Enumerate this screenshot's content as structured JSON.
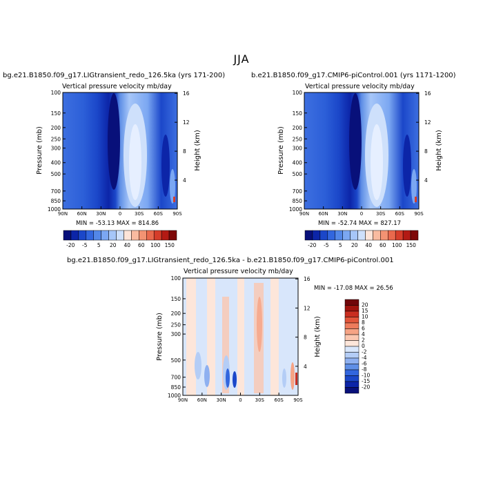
{
  "season": "JJA",
  "panels": [
    {
      "title": "bg.e21.B1850.f09_g17.LIGtransient_redo_126.5ka (yrs 171-200)",
      "subtitle": "Vertical pressure velocity   mb/day",
      "ylabel": "Pressure (mb)",
      "ylabel_right": "Height (km)",
      "stats": "MIN = -53.13   MAX = 814.86"
    },
    {
      "title": "b.e21.B1850.f09_g17.CMIP6-piControl.001 (yrs 1171-1200)",
      "subtitle": "Vertical pressure velocity   mb/day",
      "ylabel": "Pressure (mb)",
      "ylabel_right": "Height (km)",
      "stats": "MIN = -52.74   MAX = 827.17"
    },
    {
      "title": "bg.e21.B1850.f09_g17.LIGtransient_redo_126.5ka - b.e21.B1850.f09_g17.CMIP6-piControl.001",
      "subtitle": "Vertical pressure velocity   mb/day",
      "ylabel": "Pressure (mb)",
      "ylabel_right": "Height (km)",
      "stats": "MIN = -17.08   MAX =  26.56"
    }
  ],
  "colors": {
    "abs_levels": [
      "#08107a",
      "#0c25a8",
      "#1b47c9",
      "#3266de",
      "#5387e8",
      "#7ba7f2",
      "#a6c6f8",
      "#cee0fb",
      "#fde4d8",
      "#f9bba0",
      "#f39373",
      "#e9694d",
      "#d63d2a",
      "#b31a14",
      "#7e0808"
    ],
    "diff_levels": [
      "#08107a",
      "#0c25a8",
      "#1b47c9",
      "#3266de",
      "#5f8fe6",
      "#8eb0f0",
      "#b4cdf6",
      "#d8e6fb",
      "#fde6da",
      "#fbc7b0",
      "#f6a384",
      "#ee7b5c",
      "#e2553a",
      "#c92e20",
      "#a0130e",
      "#70060a"
    ]
  },
  "chart_data": [
    {
      "type": "heatmap",
      "title": "bg.e21.B1850.f09_g17.LIGtransient_redo_126.5ka (yrs 171-200)",
      "variable": "Vertical pressure velocity",
      "units": "mb/day",
      "x_ticks": [
        "90N",
        "60N",
        "30N",
        "0",
        "30S",
        "60S",
        "90S"
      ],
      "y_ticks": [
        100,
        150,
        200,
        250,
        300,
        400,
        500,
        700,
        850,
        1000
      ],
      "y_scale": "log",
      "ylim": [
        1000,
        100
      ],
      "right_axis_ticks": [
        4,
        8,
        12,
        16
      ],
      "colorbar_labels": [
        "-20",
        "-5",
        "5",
        "20",
        "40",
        "60",
        "100",
        "150"
      ],
      "min": -53.13,
      "max": 814.86
    },
    {
      "type": "heatmap",
      "title": "b.e21.B1850.f09_g17.CMIP6-piControl.001 (yrs 1171-1200)",
      "variable": "Vertical pressure velocity",
      "units": "mb/day",
      "x_ticks": [
        "90N",
        "60N",
        "30N",
        "0",
        "30S",
        "60S",
        "90S"
      ],
      "y_ticks": [
        100,
        150,
        200,
        250,
        300,
        400,
        500,
        700,
        850,
        1000
      ],
      "y_scale": "log",
      "ylim": [
        1000,
        100
      ],
      "right_axis_ticks": [
        4,
        8,
        12,
        16
      ],
      "colorbar_labels": [
        "-20",
        "-5",
        "5",
        "20",
        "40",
        "60",
        "100",
        "150"
      ],
      "min": -52.74,
      "max": 827.17
    },
    {
      "type": "heatmap",
      "title": "bg.e21.B1850.f09_g17.LIGtransient_redo_126.5ka - b.e21.B1850.f09_g17.CMIP6-piControl.001",
      "variable": "Vertical pressure velocity",
      "units": "mb/day",
      "x_ticks": [
        "90N",
        "60N",
        "30N",
        "0",
        "30S",
        "60S",
        "90S"
      ],
      "y_ticks": [
        100,
        150,
        200,
        250,
        300,
        500,
        700,
        850,
        1000
      ],
      "y_scale": "log",
      "ylim": [
        1000,
        100
      ],
      "right_axis_ticks": [
        4,
        8,
        12,
        16
      ],
      "colorbar_labels": [
        "20",
        "15",
        "10",
        "8",
        "6",
        "4",
        "2",
        "0",
        "-2",
        "-4",
        "-6",
        "-8",
        "-10",
        "-15",
        "-20"
      ],
      "min": -17.08,
      "max": 26.56
    }
  ]
}
